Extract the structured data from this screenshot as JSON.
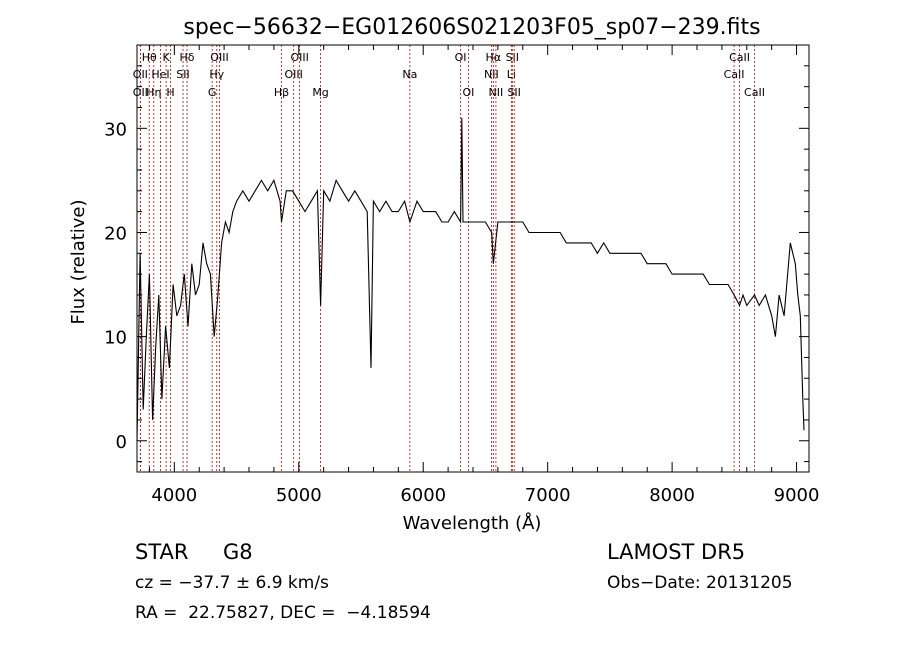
{
  "chart_data": {
    "type": "line",
    "title": "spec−56632−EG012606S021203F05_sp07−239.fits",
    "xlabel": "Wavelength (Å)",
    "ylabel": "Flux (relative)",
    "xlim": [
      3700,
      9100
    ],
    "ylim": [
      -3,
      38
    ],
    "xticks": [
      4000,
      5000,
      6000,
      7000,
      8000,
      9000
    ],
    "yticks": [
      0,
      10,
      20,
      30
    ],
    "grid": false,
    "series": [
      {
        "x": [
          3700,
          3725,
          3750,
          3775,
          3800,
          3825,
          3850,
          3875,
          3900,
          3930,
          3960,
          3990,
          4020,
          4050,
          4080,
          4110,
          4140,
          4170,
          4200,
          4230,
          4260,
          4290,
          4320,
          4350,
          4380,
          4410,
          4440,
          4470,
          4500,
          4550,
          4600,
          4650,
          4700,
          4750,
          4800,
          4850,
          4861,
          4900,
          4950,
          5000,
          5050,
          5100,
          5150,
          5175,
          5200,
          5250,
          5300,
          5350,
          5400,
          5450,
          5500,
          5550,
          5580,
          5600,
          5650,
          5700,
          5750,
          5800,
          5850,
          5893,
          5950,
          6000,
          6050,
          6100,
          6150,
          6200,
          6250,
          6300,
          6310,
          6320,
          6350,
          6400,
          6450,
          6500,
          6550,
          6563,
          6600,
          6650,
          6700,
          6750,
          6800,
          6850,
          6900,
          6950,
          7000,
          7050,
          7100,
          7150,
          7200,
          7250,
          7300,
          7350,
          7400,
          7450,
          7500,
          7550,
          7600,
          7650,
          7700,
          7750,
          7800,
          7850,
          7900,
          7950,
          8000,
          8050,
          8100,
          8150,
          8200,
          8250,
          8300,
          8350,
          8400,
          8450,
          8498,
          8542,
          8570,
          8600,
          8662,
          8700,
          8750,
          8800,
          8830,
          8860,
          8900,
          8950,
          8990,
          9010,
          9030,
          9050,
          9060
        ],
        "y": [
          0,
          18,
          3,
          10,
          16,
          2,
          9,
          14,
          4,
          11,
          7,
          15,
          12,
          13,
          16,
          11,
          17,
          14,
          15,
          19,
          17,
          16,
          10,
          14,
          19,
          21,
          20,
          22,
          23,
          24,
          23,
          24,
          25,
          24,
          25,
          23,
          21,
          24,
          24,
          23,
          22,
          23,
          24,
          13,
          24,
          23,
          25,
          24,
          23,
          24,
          23,
          22,
          7,
          23,
          22,
          23,
          22,
          22,
          23,
          21,
          23,
          22,
          22,
          22,
          21,
          21,
          22,
          21,
          31,
          21,
          21,
          21,
          21,
          21,
          20,
          17,
          21,
          21,
          21,
          21,
          21,
          20,
          20,
          20,
          20,
          20,
          20,
          19,
          19,
          19,
          19,
          19,
          18,
          19,
          18,
          18,
          18,
          18,
          18,
          18,
          17,
          17,
          17,
          17,
          16,
          16,
          16,
          16,
          16,
          16,
          15,
          15,
          15,
          15,
          14,
          13,
          14,
          13,
          14,
          13,
          14,
          12,
          10,
          14,
          12,
          19,
          17,
          14,
          12,
          4,
          1
        ]
      }
    ],
    "lines": [
      {
        "wl": 3727,
        "color": "#c00000",
        "label": "OII",
        "row": 2
      },
      {
        "wl": 3727,
        "color": "#c00000",
        "label": "OII",
        "row": 1
      },
      {
        "wl": 3798,
        "color": "#c00000",
        "label": "Hθ",
        "row": 0
      },
      {
        "wl": 3835,
        "color": "#c00000",
        "label": "Hη",
        "row": 2
      },
      {
        "wl": 3889,
        "color": "#c00000",
        "label": "HeI",
        "row": 1
      },
      {
        "wl": 3934,
        "color": "#c00000",
        "label": "K",
        "row": 0
      },
      {
        "wl": 3969,
        "color": "#c00000",
        "label": "H",
        "row": 2
      },
      {
        "wl": 4070,
        "color": "#c00000",
        "label": "SII",
        "row": 1
      },
      {
        "wl": 4102,
        "color": "#c00000",
        "label": "Hδ",
        "row": 0
      },
      {
        "wl": 4304,
        "color": "#c00000",
        "label": "G",
        "row": 2
      },
      {
        "wl": 4341,
        "color": "#c00000",
        "label": "Hγ",
        "row": 1
      },
      {
        "wl": 4363,
        "color": "#c00000",
        "label": "OIII",
        "row": 0
      },
      {
        "wl": 4861,
        "color": "#c00000",
        "label": "Hβ",
        "row": 2
      },
      {
        "wl": 4959,
        "color": "#c00000",
        "label": "OIII",
        "row": 1
      },
      {
        "wl": 5007,
        "color": "#c00000",
        "label": "OIII",
        "row": 0
      },
      {
        "wl": 5175,
        "color": "#c00000",
        "label": "Mg",
        "row": 2
      },
      {
        "wl": 5893,
        "color": "#c00000",
        "label": "Na",
        "row": 1
      },
      {
        "wl": 6300,
        "color": "#c00000",
        "label": "OI",
        "row": 0
      },
      {
        "wl": 6363,
        "color": "#c00000",
        "label": "OI",
        "row": 2
      },
      {
        "wl": 6548,
        "color": "#c00000",
        "label": "NII",
        "row": 1
      },
      {
        "wl": 6563,
        "color": "#c00000",
        "label": "Hα",
        "row": 0
      },
      {
        "wl": 6584,
        "color": "#c00000",
        "label": "NII",
        "row": 2
      },
      {
        "wl": 6708,
        "color": "#c00000",
        "label": "Li",
        "row": 1
      },
      {
        "wl": 6716,
        "color": "#c00000",
        "label": "SII",
        "row": 0
      },
      {
        "wl": 6731,
        "color": "#c00000",
        "label": "SII",
        "row": 2
      },
      {
        "wl": 8498,
        "color": "#c00000",
        "label": "CaII",
        "row": 1
      },
      {
        "wl": 8542,
        "color": "#c00000",
        "label": "CaII",
        "row": 0
      },
      {
        "wl": 8662,
        "color": "#c00000",
        "label": "CaII",
        "row": 2
      }
    ]
  },
  "footer": {
    "class_label": "STAR",
    "subclass_label": "G8",
    "release": "LAMOST DR5",
    "redshift": "cz = −37.7 ± 6.9 km/s",
    "obs_date": "Obs−Date: 20131205",
    "coords": "RA =  22.75827, DEC =  −4.18594"
  }
}
